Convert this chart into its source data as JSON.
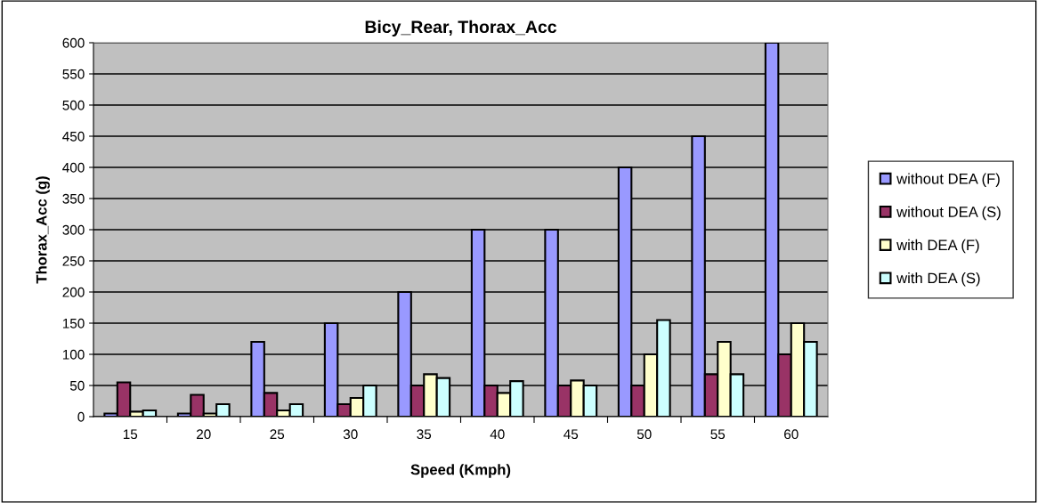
{
  "chart_data": {
    "type": "bar",
    "title": "Bicy_Rear, Thorax_Acc",
    "xlabel": "Speed (Kmph)",
    "ylabel": "Thorax_Acc (g)",
    "categories": [
      "15",
      "20",
      "25",
      "30",
      "35",
      "40",
      "45",
      "50",
      "55",
      "60"
    ],
    "series": [
      {
        "name": "without DEA (F)",
        "color": "#9999ff",
        "values": [
          5,
          5,
          120,
          150,
          200,
          300,
          300,
          400,
          450,
          600
        ]
      },
      {
        "name": "without DEA (S)",
        "color": "#993366",
        "values": [
          55,
          35,
          38,
          20,
          50,
          50,
          50,
          50,
          68,
          100
        ]
      },
      {
        "name": "with DEA (F)",
        "color": "#ffffcc",
        "values": [
          8,
          5,
          10,
          30,
          68,
          38,
          58,
          100,
          120,
          150
        ]
      },
      {
        "name": "with DEA (S)",
        "color": "#ccffff",
        "values": [
          10,
          20,
          20,
          50,
          62,
          57,
          50,
          155,
          68,
          120
        ]
      }
    ],
    "ylim": [
      0,
      600
    ],
    "yticks": [
      0,
      50,
      100,
      150,
      200,
      250,
      300,
      350,
      400,
      450,
      500,
      550,
      600
    ],
    "grid": "y",
    "legend": "right"
  }
}
